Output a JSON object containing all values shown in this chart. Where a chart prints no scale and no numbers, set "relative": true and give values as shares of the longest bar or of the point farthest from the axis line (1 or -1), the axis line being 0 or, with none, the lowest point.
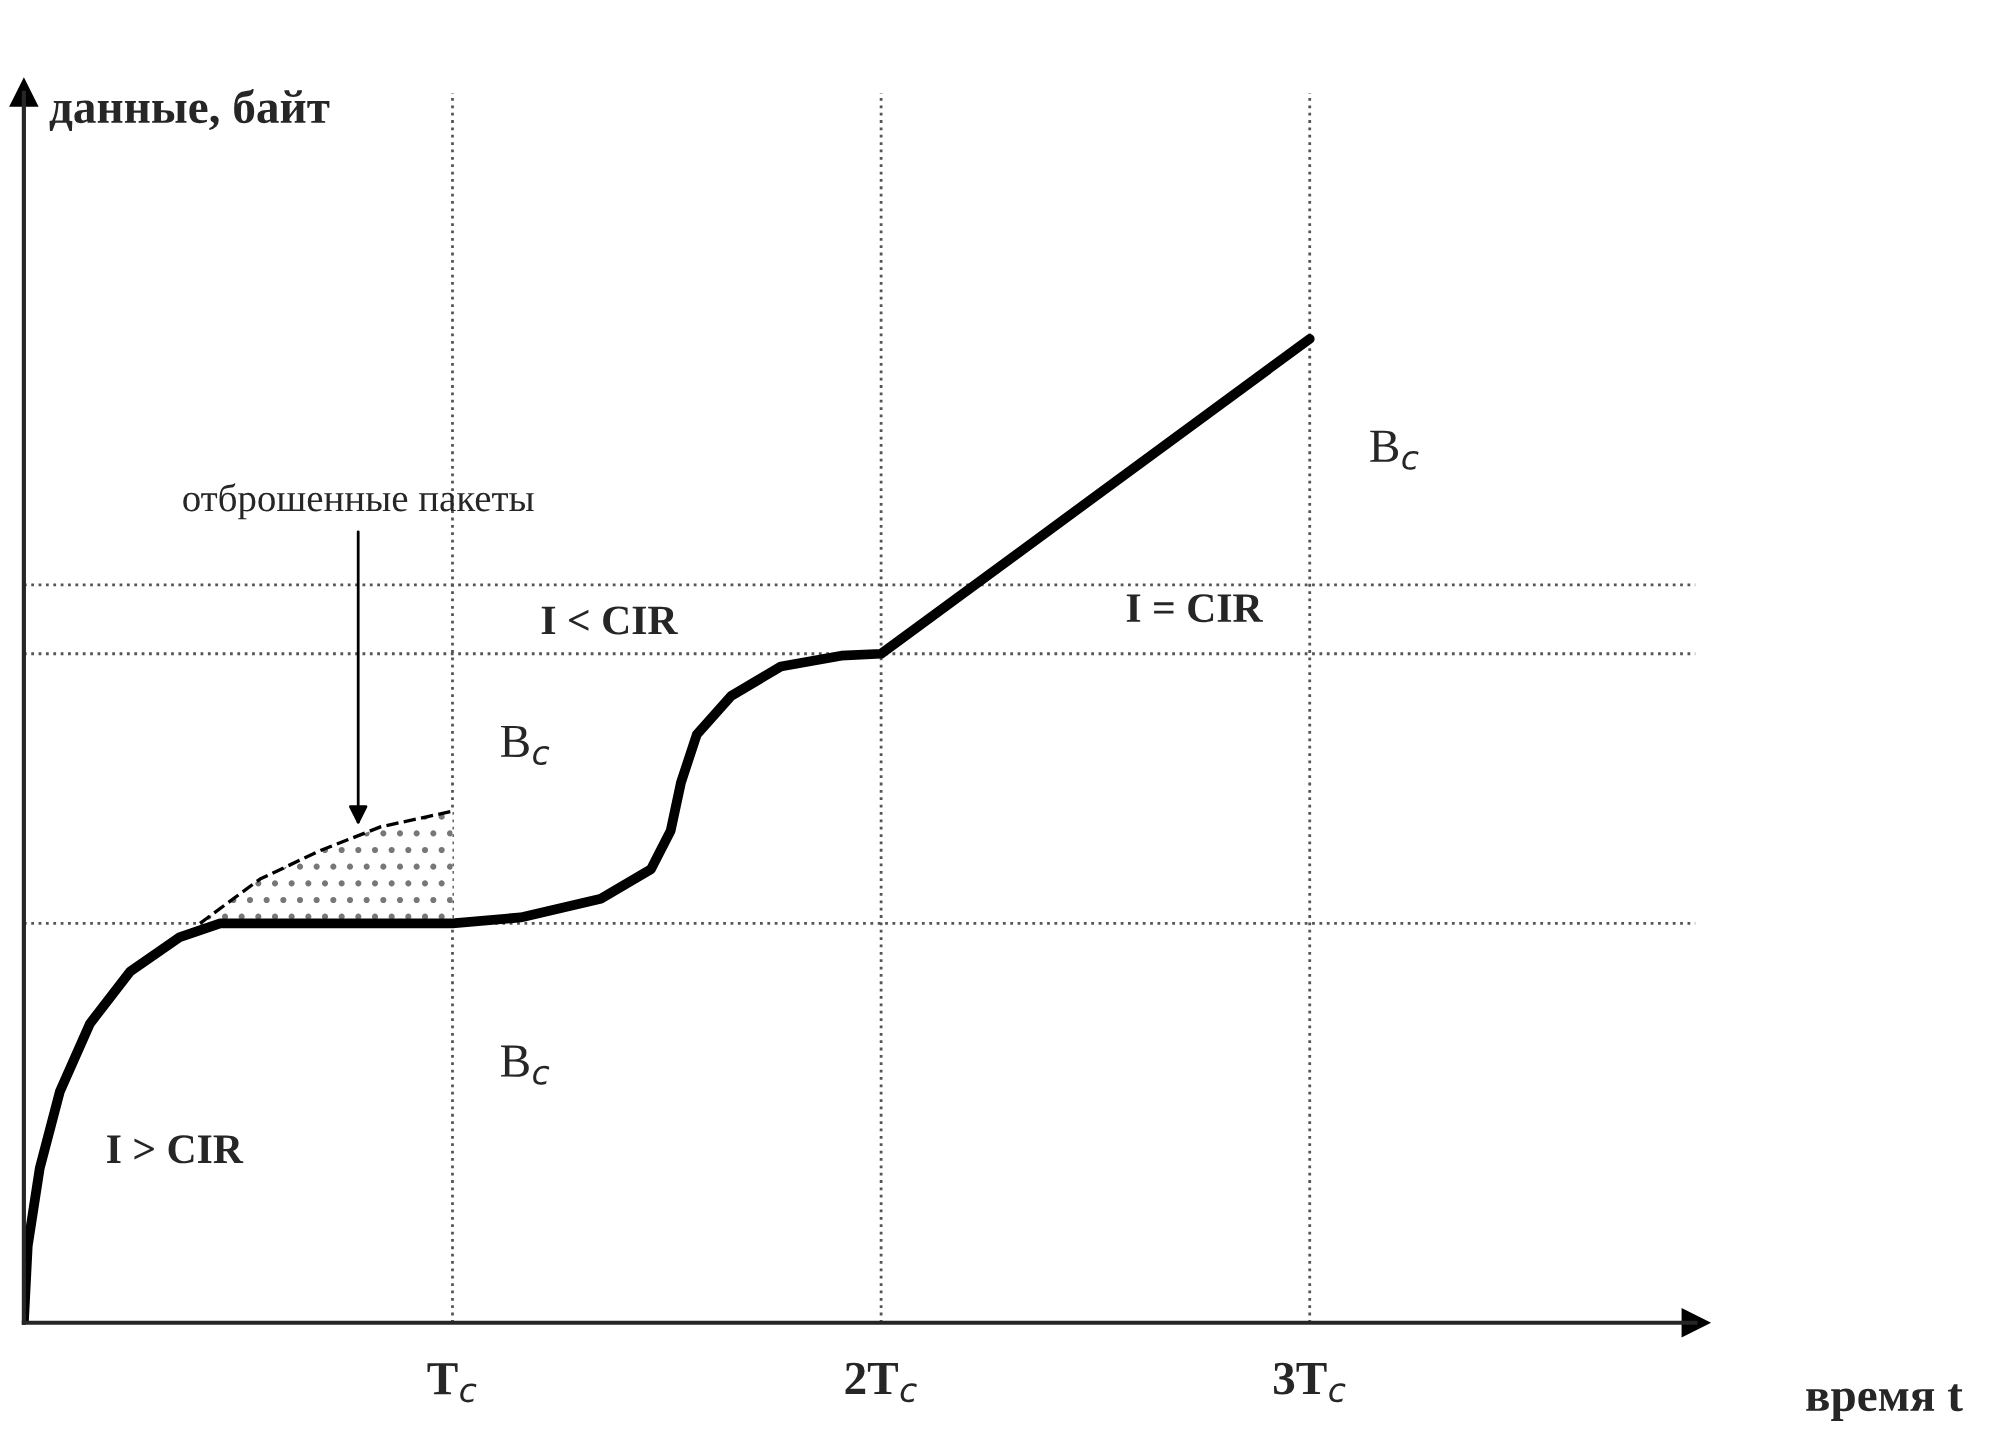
{
  "chart_data": {
    "type": "line",
    "relative": true,
    "xlabel": "время t",
    "ylabel": "данные, байт",
    "xlim": [
      0,
      3.9
    ],
    "xticks": [
      {
        "value": 1,
        "label": "T$_{c}$"
      },
      {
        "value": 2,
        "label": "2T$_{c}$"
      },
      {
        "value": 3,
        "label": "3T$_{c}$"
      }
    ],
    "grid": false,
    "marker": "none",
    "series": [
      {
        "color": "#000000",
        "line_style": "solid",
        "x": [
          0,
          0.009,
          0.037,
          0.084,
          0.154,
          0.248,
          0.364,
          0.458,
          1.0,
          1.159,
          1.346,
          1.463,
          1.509,
          1.533,
          1.57,
          1.65,
          1.766,
          1.907,
          2.0,
          3.0
        ],
        "values": [
          0,
          0.078,
          0.157,
          0.235,
          0.304,
          0.357,
          0.392,
          0.406,
          0.406,
          0.412,
          0.431,
          0.461,
          0.5,
          0.549,
          0.598,
          0.637,
          0.667,
          0.678,
          0.68,
          1.0
        ]
      },
      {
        "color": "#000000",
        "line_style": "dashed",
        "x": [
          0.411,
          0.551,
          0.692,
          0.832,
          1.0
        ],
        "values": [
          0.406,
          0.451,
          0.48,
          0.504,
          0.52
        ],
        "lower": [
          0.406,
          0.406,
          0.406,
          0.406,
          0.406
        ],
        "upper": [
          0.406,
          0.451,
          0.48,
          0.504,
          0.52
        ]
      }
    ],
    "ref_lines": [
      {
        "axis": "x",
        "value": 1,
        "line_style": "dotted",
        "color": "#555555"
      },
      {
        "axis": "x",
        "value": 2,
        "line_style": "dotted",
        "color": "#555555"
      },
      {
        "axis": "x",
        "value": 3,
        "line_style": "dotted",
        "color": "#555555"
      },
      {
        "axis": "y",
        "value": 0.406,
        "line_style": "dotted",
        "color": "#555555"
      },
      {
        "axis": "y",
        "value": 0.68,
        "line_style": "dotted",
        "color": "#555555"
      },
      {
        "axis": "y",
        "value": 0.75,
        "line_style": "dotted",
        "color": "#555555"
      }
    ],
    "annotations": [
      "отброшенные пакеты",
      "I > CIR",
      "I < CIR",
      "I = CIR",
      "B$_{c}$",
      "B$_{c}$",
      "B$_{c}$"
    ]
  }
}
